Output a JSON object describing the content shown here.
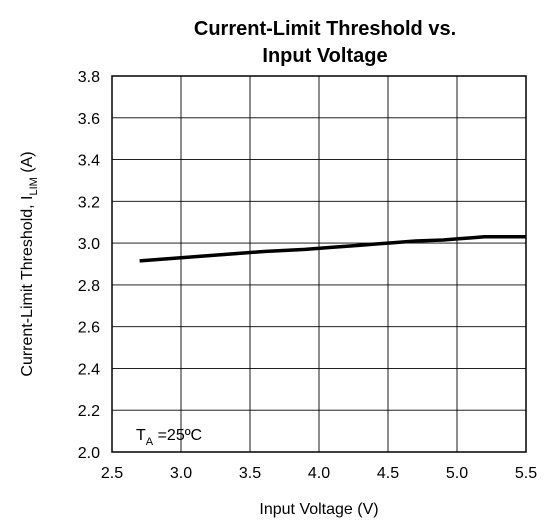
{
  "chart_data": {
    "type": "line",
    "title_line1": "Current-Limit Threshold vs.",
    "title_line2": "Input Voltage",
    "xlabel": "Input Voltage (V)",
    "ylabel_main": "Current-Limit Threshold, I",
    "ylabel_sub": "LIM",
    "ylabel_unit": " (A)",
    "xlim": [
      2.5,
      5.5
    ],
    "ylim": [
      2.0,
      3.8
    ],
    "xticks": [
      "2.5",
      "3.0",
      "3.5",
      "4.0",
      "4.5",
      "5.0",
      "5.5"
    ],
    "yticks": [
      "2.0",
      "2.2",
      "2.4",
      "2.6",
      "2.8",
      "3.0",
      "3.2",
      "3.4",
      "3.6",
      "3.8"
    ],
    "grid": true,
    "annotation": {
      "t": "T",
      "sub": "A",
      "rest": " =25ºC"
    },
    "series": [
      {
        "x": [
          2.7,
          3.0,
          3.3,
          3.6,
          3.9,
          4.1,
          4.3,
          4.5,
          4.7,
          4.9,
          5.0,
          5.1,
          5.2,
          5.3,
          5.5
        ],
        "y": [
          2.915,
          2.93,
          2.945,
          2.96,
          2.97,
          2.98,
          2.99,
          3.0,
          3.01,
          3.015,
          3.02,
          3.025,
          3.03,
          3.03,
          3.03
        ]
      }
    ]
  }
}
